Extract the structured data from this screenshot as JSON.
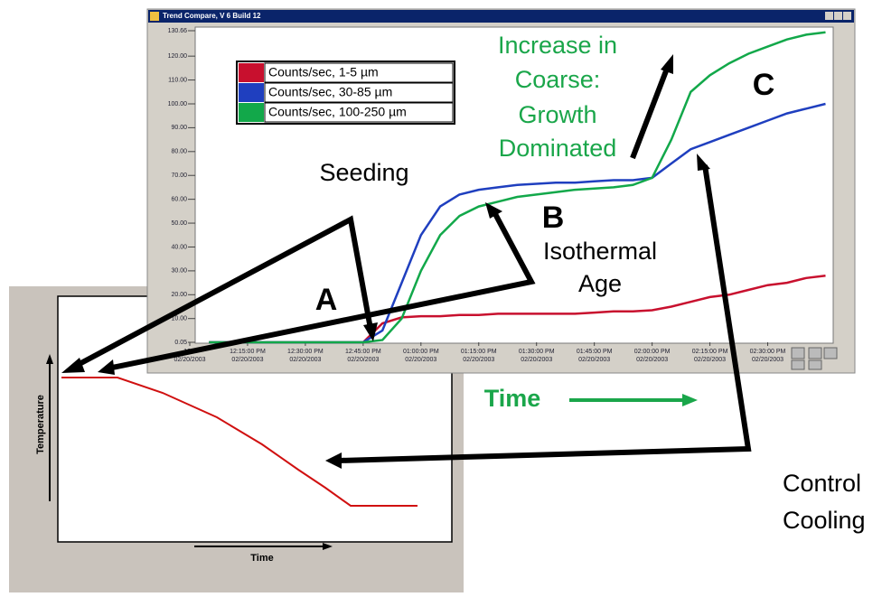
{
  "chart_data": {
    "type": "line",
    "title": "Trend Compare, V 6 Build 12",
    "x": [
      "2003-02-20T12:05:00",
      "2003-02-20T12:10:00",
      "2003-02-20T12:15:00",
      "2003-02-20T12:20:00",
      "2003-02-20T12:25:00",
      "2003-02-20T12:30:00",
      "2003-02-20T12:35:00",
      "2003-02-20T12:40:00",
      "2003-02-20T12:45:00",
      "2003-02-20T12:50:00",
      "2003-02-20T12:55:00",
      "2003-02-20T13:00:00",
      "2003-02-20T13:05:00",
      "2003-02-20T13:10:00",
      "2003-02-20T13:15:00",
      "2003-02-20T13:20:00",
      "2003-02-20T13:25:00",
      "2003-02-20T13:30:00",
      "2003-02-20T13:35:00",
      "2003-02-20T13:40:00",
      "2003-02-20T13:45:00",
      "2003-02-20T13:50:00",
      "2003-02-20T13:55:00",
      "2003-02-20T14:00:00",
      "2003-02-20T14:05:00",
      "2003-02-20T14:10:00",
      "2003-02-20T14:15:00",
      "2003-02-20T14:20:00",
      "2003-02-20T14:25:00",
      "2003-02-20T14:30:00",
      "2003-02-20T14:35:00",
      "2003-02-20T14:40:00",
      "2003-02-20T14:45:00"
    ],
    "series": [
      {
        "name": "Counts/sec, 1-5 µm",
        "color": "#c8102e",
        "values": [
          0.05,
          0.05,
          0.05,
          0.05,
          0.05,
          0.05,
          0.05,
          0.05,
          0.05,
          8,
          10.5,
          11,
          11,
          11.5,
          11.5,
          12,
          12,
          12,
          12,
          12,
          12.5,
          13,
          13,
          13.5,
          15,
          17,
          19,
          20,
          22,
          24,
          25,
          27,
          28
        ]
      },
      {
        "name": "Counts/sec, 30-85 µm",
        "color": "#1f3fbf",
        "values": [
          0.05,
          0.05,
          0.05,
          0.05,
          0.05,
          0.05,
          0.05,
          0.05,
          0.05,
          5,
          25,
          45,
          57,
          62,
          64,
          65,
          66,
          66.5,
          67,
          67,
          67.5,
          68,
          68,
          69,
          75,
          81,
          84,
          87,
          90,
          93,
          96,
          98,
          100
        ]
      },
      {
        "name": "Counts/sec, 100-250 µm",
        "color": "#12a84a",
        "values": [
          0.05,
          0.05,
          0.05,
          0.05,
          0.05,
          0.05,
          0.05,
          0.05,
          0.05,
          1,
          10,
          30,
          45,
          53,
          57,
          59,
          61,
          62,
          63,
          64,
          64.5,
          65,
          66,
          69,
          85,
          105,
          112,
          117,
          121,
          124,
          127,
          129,
          130
        ]
      }
    ],
    "xlim": [
      "2003-02-20T12:00:00",
      "2003-02-20T14:47:00"
    ],
    "xticks": [
      {
        "value": "2003-02-20T12:00:00",
        "label": [
          "12:0",
          "02/20/2003"
        ]
      },
      {
        "value": "2003-02-20T12:15:00",
        "label": [
          "12:15:00 PM",
          "02/20/2003"
        ]
      },
      {
        "value": "2003-02-20T12:30:00",
        "label": [
          "12:30:00 PM",
          "02/20/2003"
        ]
      },
      {
        "value": "2003-02-20T12:45:00",
        "label": [
          "12:45:00 PM",
          "02/20/2003"
        ]
      },
      {
        "value": "2003-02-20T13:00:00",
        "label": [
          "01:00:00 PM",
          "02/20/2003"
        ]
      },
      {
        "value": "2003-02-20T13:15:00",
        "label": [
          "01:15:00 PM",
          "02/20/2003"
        ]
      },
      {
        "value": "2003-02-20T13:30:00",
        "label": [
          "01:30:00 PM",
          "02/20/2003"
        ]
      },
      {
        "value": "2003-02-20T13:45:00",
        "label": [
          "01:45:00 PM",
          "02/20/2003"
        ]
      },
      {
        "value": "2003-02-20T14:00:00",
        "label": [
          "02:00:00 PM",
          "02/20/2003"
        ]
      },
      {
        "value": "2003-02-20T14:15:00",
        "label": [
          "02:15:00 PM",
          "02/20/2003"
        ]
      },
      {
        "value": "2003-02-20T14:30:00",
        "label": [
          "02:30:00 PM",
          "02/20/2003"
        ]
      }
    ],
    "ylim": [
      0.05,
      130.66
    ],
    "yticks": [
      0.05,
      {
        "value": 10,
        "label": "10.00"
      },
      {
        "value": 20,
        "label": "20.00"
      },
      {
        "value": 30,
        "label": "30.00"
      },
      {
        "value": 40,
        "label": "40.00"
      },
      {
        "value": 50,
        "label": "50.00"
      },
      {
        "value": 60,
        "label": "60.00"
      },
      {
        "value": 70,
        "label": "70.00"
      },
      {
        "value": 80,
        "label": "80.00"
      },
      {
        "value": 90,
        "label": "90.00"
      },
      {
        "value": 100,
        "label": "100.00"
      },
      {
        "value": 110,
        "label": "110.00"
      },
      {
        "value": 120,
        "label": "120.00"
      },
      130.66
    ],
    "legend": "upper left",
    "annotations": {
      "growth": [
        "Increase in",
        "Coarse:",
        "Growth",
        "Dominated"
      ],
      "c": "C",
      "seeding": "Seeding",
      "b": "B",
      "isothermal": [
        "Isothermal",
        "Age"
      ],
      "a": "A",
      "time": "Time",
      "cooling": [
        "Control",
        "Cooling"
      ]
    }
  },
  "inset": {
    "y_label": "Temperature",
    "x_label": "Time"
  }
}
